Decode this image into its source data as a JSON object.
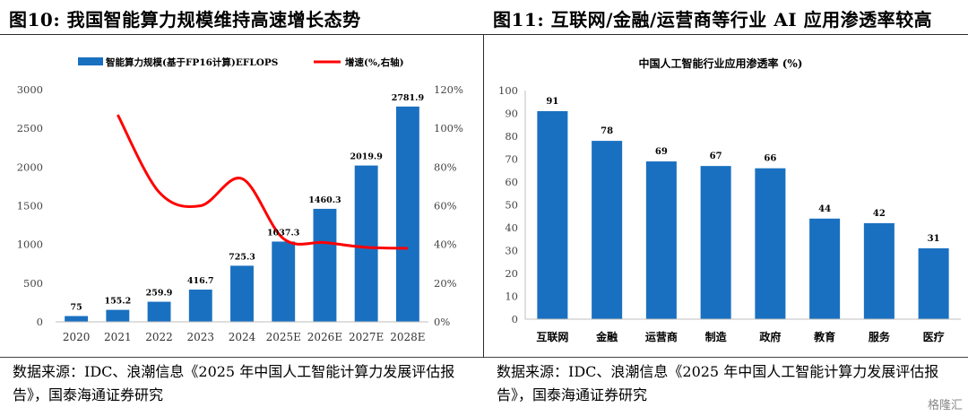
{
  "left_panel": {
    "title": "图10:  我国智能算力规模维持高速增长态势",
    "source": "数据来源：IDC、浪潮信息《2025 年中国人工智能计算力发展评估报告》，国泰海通证券研究"
  },
  "right_panel": {
    "title": "图11:  互联网/金融/运营商等行业 AI 应用渗透率较高",
    "source": "数据来源：IDC、浪潮信息《2025 年中国人工智能计算力发展评估报告》，国泰海通证券研究"
  },
  "watermark": "格隆汇",
  "colors": {
    "bar": "#1a70c0",
    "line": "#ff0000",
    "axis": "#bfbfbf"
  },
  "chart_data": [
    {
      "type": "bar",
      "title": "",
      "categories": [
        "2020",
        "2021",
        "2022",
        "2023",
        "2024",
        "2025E",
        "2026E",
        "2027E",
        "2028E"
      ],
      "series": [
        {
          "name": "智能算力规模(基于FP16计算)EFLOPS",
          "type": "bar",
          "axis": "left",
          "values": [
            75,
            155.2,
            259.9,
            416.7,
            725.3,
            1037.3,
            1460.3,
            2019.9,
            2781.9
          ],
          "labels": [
            "75",
            "155.2",
            "259.9",
            "416.7",
            "725.3",
            "1037.3",
            "1460.3",
            "2019.9",
            "2781.9"
          ]
        },
        {
          "name": "增速(%,右轴)",
          "type": "line",
          "axis": "right",
          "values": [
            null,
            107,
            67,
            60,
            74,
            43,
            41,
            38.5,
            38
          ]
        }
      ],
      "ylim": [
        0,
        3000
      ],
      "yticks": [
        "0",
        "500",
        "1000",
        "1500",
        "2000",
        "2500",
        "3000"
      ],
      "y2lim": [
        0,
        120
      ],
      "y2ticks": [
        "0%",
        "20%",
        "40%",
        "60%",
        "80%",
        "100%",
        "120%"
      ],
      "xlabel": "",
      "ylabel": "",
      "legend": "top"
    },
    {
      "type": "bar",
      "title": "中国人工智能行业应用渗透率 (%)",
      "categories": [
        "互联网",
        "金融",
        "运营商",
        "制造",
        "政府",
        "教育",
        "服务",
        "医疗"
      ],
      "values": [
        91,
        78,
        69,
        67,
        66,
        44,
        42,
        31
      ],
      "labels": [
        "91",
        "78",
        "69",
        "67",
        "66",
        "44",
        "42",
        "31"
      ],
      "ylim": [
        0,
        100
      ],
      "yticks": [
        "0",
        "10",
        "20",
        "30",
        "40",
        "50",
        "60",
        "70",
        "80",
        "90",
        "100"
      ],
      "xlabel": "",
      "ylabel": "",
      "legend": "none"
    }
  ]
}
